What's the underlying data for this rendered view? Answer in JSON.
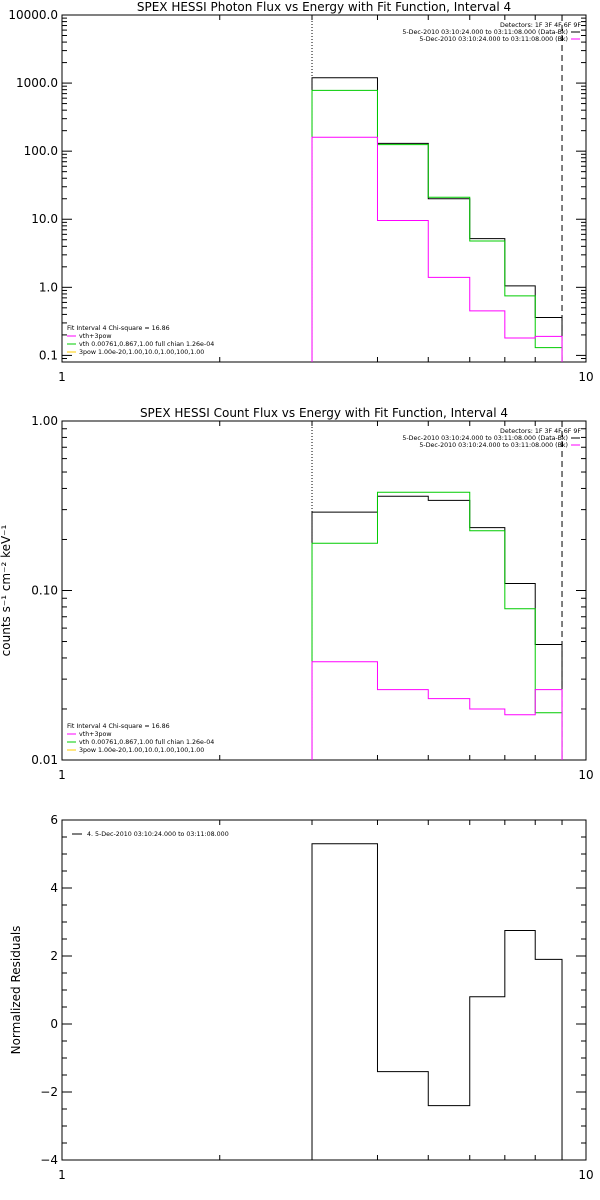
{
  "chart_data": [
    {
      "type": "line",
      "title": "SPEX HESSI Photon Flux vs Energy with Fit Function, Interval 4",
      "ylabel": "",
      "xscale": "log",
      "yscale": "log",
      "xlim": [
        1,
        10
      ],
      "ylim": [
        0.08,
        10000
      ],
      "x_tick_labels": [
        "1",
        "10"
      ],
      "y_ticks": [
        0.1,
        1,
        10,
        100,
        1000,
        10000
      ],
      "y_tick_labels": [
        "0.1",
        "1.0",
        "10.0",
        "100.0",
        "1000.0",
        "10000.0"
      ],
      "vlines": [
        {
          "x": 3.0,
          "style": "dotted"
        },
        {
          "x": 9.0,
          "style": "dashed"
        }
      ],
      "bin_edges": [
        3,
        4,
        5,
        6,
        7,
        8,
        9
      ],
      "series": [
        {
          "color": "#000000",
          "values": [
            1200,
            130,
            20,
            5.2,
            1.05,
            0.36
          ]
        },
        {
          "color": "#00cc00",
          "values": [
            780,
            125,
            21,
            4.8,
            0.75,
            0.13
          ]
        },
        {
          "color": "#ff00ff",
          "values": [
            160,
            9.6,
            1.4,
            0.45,
            0.18,
            0.19
          ]
        }
      ],
      "legend_top": [
        "Detectors: 1F 3F 4F 6F 9F",
        "5-Dec-2010 03:10:24.000 to 03:11:08.000 (Data-Bk)",
        "5-Dec-2010 03:10:24.000 to 03:11:08.000 (Bk)"
      ],
      "legend_top_colors": [
        "",
        "#000000",
        "#ff00ff"
      ],
      "legend_bottom": [
        "Fit Interval 4   Chi-square = 16.86",
        "vth+3pow",
        "vth 0.00761,0.867,1.00  full chian 1.26e-04",
        "3pow 1.00e-20,1.00,10.0,1.00,100,1.00"
      ],
      "legend_bottom_colors": [
        "",
        "#ff00ff",
        "#00cc00",
        "#ffcc00"
      ]
    },
    {
      "type": "line",
      "title": "SPEX HESSI Count Flux vs Energy with Fit Function, Interval 4",
      "ylabel": "counts s⁻¹ cm⁻² keV⁻¹",
      "xscale": "log",
      "yscale": "log",
      "xlim": [
        1,
        10
      ],
      "ylim": [
        0.01,
        1.0
      ],
      "x_tick_labels": [
        "1",
        "10"
      ],
      "y_ticks": [
        0.01,
        0.1,
        1.0
      ],
      "y_tick_labels": [
        "0.01",
        "0.10",
        "1.00"
      ],
      "vlines": [
        {
          "x": 3.0,
          "style": "dotted"
        },
        {
          "x": 9.0,
          "style": "dashed"
        }
      ],
      "bin_edges": [
        3,
        4,
        5,
        6,
        7,
        8,
        9
      ],
      "series": [
        {
          "color": "#000000",
          "values": [
            0.29,
            0.36,
            0.34,
            0.235,
            0.11,
            0.048
          ]
        },
        {
          "color": "#00cc00",
          "values": [
            0.19,
            0.38,
            0.38,
            0.225,
            0.078,
            0.019
          ]
        },
        {
          "color": "#ff00ff",
          "values": [
            0.038,
            0.026,
            0.023,
            0.02,
            0.0185,
            0.026
          ]
        }
      ],
      "legend_top": [
        "Detectors: 1F 3F 4F 6F 9F",
        "5-Dec-2010 03:10:24.000 to 03:11:08.000 (Data-Bk)",
        "5-Dec-2010 03:10:24.000 to 03:11:08.000 (Bk)"
      ],
      "legend_top_colors": [
        "",
        "#000000",
        "#ff00ff"
      ],
      "legend_bottom": [
        "Fit Interval 4   Chi-square = 16.86",
        "vth+3pow",
        "vth 0.00761,0.867,1.00  full chian 1.26e-04",
        "3pow 1.00e-20,1.00,10.0,1.00,100,1.00"
      ],
      "legend_bottom_colors": [
        "",
        "#ff00ff",
        "#00cc00",
        "#ffcc00"
      ]
    },
    {
      "type": "line",
      "title": "",
      "ylabel": "Normalized Residuals",
      "xscale": "log",
      "yscale": "linear",
      "xlim": [
        1,
        10
      ],
      "ylim": [
        -4,
        6
      ],
      "x_tick_labels": [
        "1",
        "10"
      ],
      "y_ticks": [
        -4,
        -2,
        0,
        2,
        4,
        6
      ],
      "y_tick_labels": [
        "−4",
        "−2",
        "0",
        "2",
        "4",
        "6"
      ],
      "vlines": [],
      "bin_edges": [
        3,
        4,
        5,
        6,
        7,
        8,
        9
      ],
      "series": [
        {
          "color": "#000000",
          "values": [
            5.3,
            -1.4,
            -2.4,
            0.8,
            2.75,
            1.9
          ]
        }
      ],
      "legend_top": [
        "4.  5-Dec-2010 03:10:24.000 to 03:11:08.000"
      ],
      "legend_top_colors": [
        "#000000"
      ],
      "legend_bottom": [],
      "legend_bottom_colors": []
    }
  ]
}
